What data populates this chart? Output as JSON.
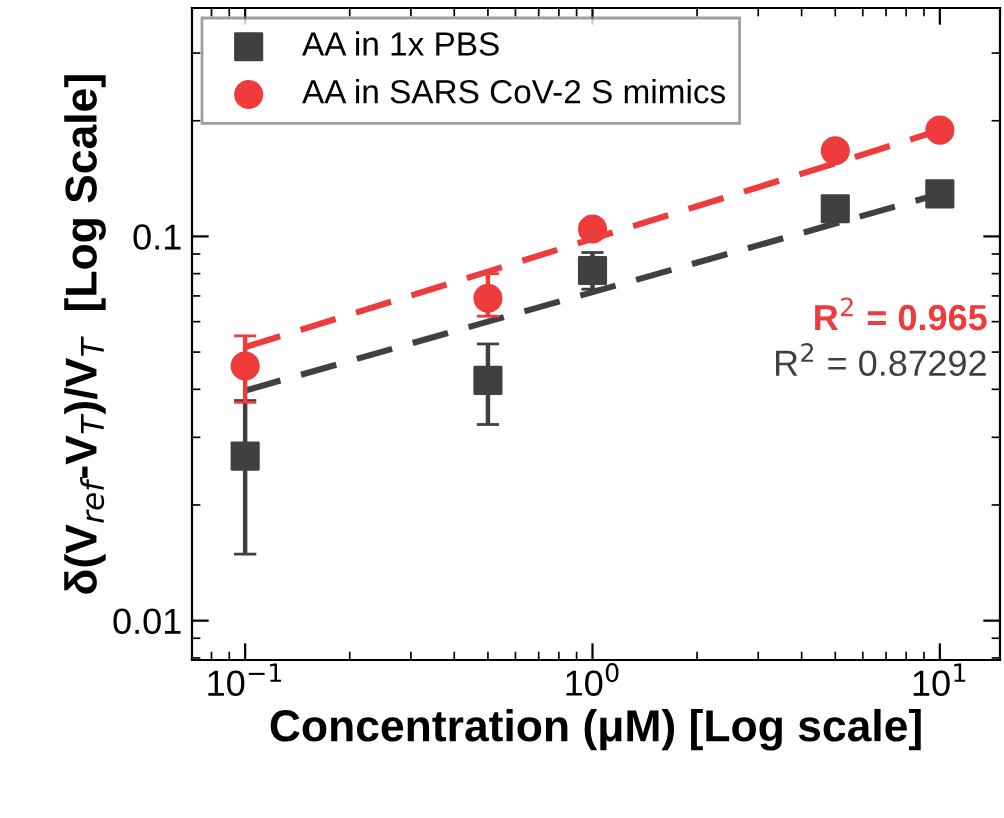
{
  "chart_data": {
    "type": "scatter",
    "xlabel": "Concentration (μM) [Log scale]",
    "ylabel": "δ(V$_{ref}$-V$_{T}$)/V$_{T}$  [Log Scale]",
    "x": [
      0.1,
      0.5,
      1,
      5,
      10
    ],
    "series": [
      {
        "name": "AA in 1x PBS",
        "color": "#404040",
        "marker": "square",
        "values": [
          0.0268,
          0.0422,
          0.0815,
          0.118,
          0.129
        ],
        "errors": [
          [
            0.0149,
            0.0374
          ],
          [
            0.0324,
            0.0525
          ],
          [
            0.0729,
            0.0908
          ],
          null,
          null
        ]
      },
      {
        "name": "AA in SARS CoV-2 S mimics",
        "color": "#ee3b3b",
        "marker": "circle",
        "values": [
          0.046,
          0.069,
          0.1045,
          0.167,
          0.189
        ],
        "errors": [
          [
            0.037,
            0.0551
          ],
          [
            0.062,
            0.08
          ],
          null,
          null,
          null
        ]
      },
      {
        "type": "line",
        "color": "#ee3b3b",
        "line_style": "dashed",
        "marker": "none",
        "values": [
          0.0515,
          0.081,
          0.0986,
          0.155,
          0.189
        ]
      },
      {
        "type": "line",
        "color": "#404040",
        "line_style": "dashed",
        "marker": "none",
        "values": [
          0.0397,
          0.06,
          0.0716,
          0.108,
          0.129
        ]
      }
    ],
    "annotations": [
      "R$^{2}$ = 0.965",
      "R$^{2}$ = 0.87292"
    ],
    "log": "xy",
    "xlim": [
      0.0703,
      14.9
    ],
    "ylim": [
      0.0079,
      0.393
    ],
    "xticks": [
      {
        "value": 0.1,
        "label": "10$^{−1}$"
      },
      {
        "value": 1,
        "label": "10$^{0}$"
      },
      {
        "value": 10,
        "label": "10$^{1}$"
      }
    ],
    "yticks": [
      0.01,
      0.1
    ],
    "grid": false,
    "legend": "top left"
  }
}
